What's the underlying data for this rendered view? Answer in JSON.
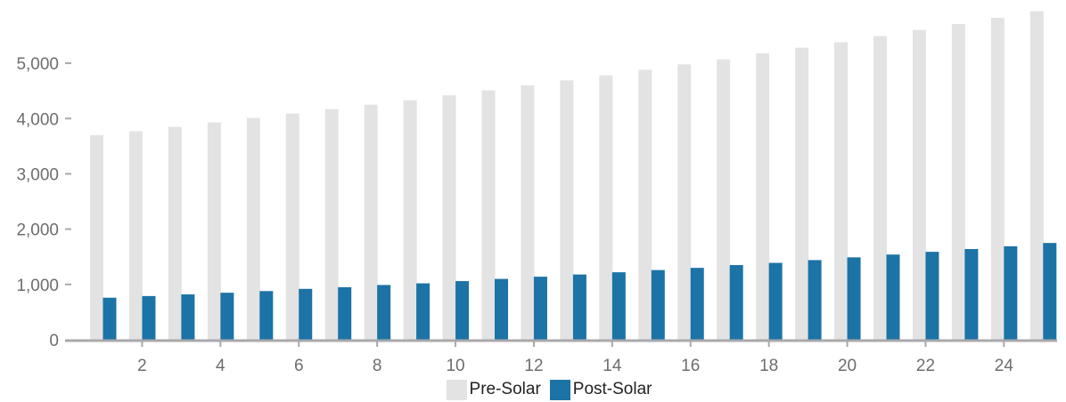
{
  "chart_data": {
    "type": "bar",
    "title": "",
    "xlabel": "",
    "ylabel": "",
    "categories": [
      1,
      2,
      3,
      4,
      5,
      6,
      7,
      8,
      9,
      10,
      11,
      12,
      13,
      14,
      15,
      16,
      17,
      18,
      19,
      20,
      21,
      22,
      23,
      24,
      25
    ],
    "x_tick_labels": [
      "2",
      "4",
      "6",
      "8",
      "10",
      "12",
      "14",
      "16",
      "18",
      "20",
      "22",
      "24"
    ],
    "y_tick_labels": [
      "0",
      "1,000",
      "2,000",
      "3,000",
      "4,000",
      "5,000"
    ],
    "y_ticks": [
      0,
      1000,
      2000,
      3000,
      4000,
      5000
    ],
    "ylim": [
      0,
      5950
    ],
    "grid": false,
    "legend_position": "bottom-center",
    "series": [
      {
        "name": "Pre-Solar",
        "color": "#e3e3e3",
        "values": [
          3700,
          3770,
          3850,
          3930,
          4010,
          4090,
          4170,
          4250,
          4330,
          4420,
          4510,
          4600,
          4690,
          4780,
          4880,
          4980,
          5070,
          5180,
          5280,
          5380,
          5490,
          5600,
          5710,
          5820,
          5940
        ]
      },
      {
        "name": "Post-Solar",
        "color": "#1c73a6",
        "values": [
          760,
          790,
          820,
          850,
          880,
          920,
          950,
          990,
          1020,
          1060,
          1100,
          1140,
          1180,
          1220,
          1260,
          1300,
          1350,
          1390,
          1440,
          1490,
          1540,
          1590,
          1640,
          1690,
          1750
        ]
      }
    ]
  },
  "axis_color": "#a9a9ad"
}
